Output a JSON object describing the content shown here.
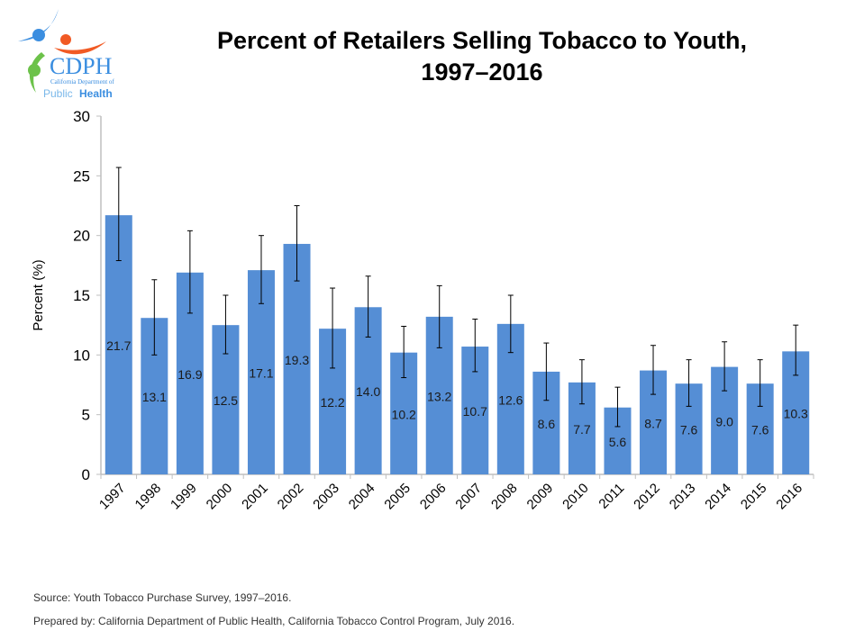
{
  "logo": {
    "text_main": "CDPH",
    "text_sub": "California Department of",
    "text_bottom_1": "Public",
    "text_bottom_2": "Health"
  },
  "title_line1": "Percent of Retailers Selling Tobacco to Youth,",
  "title_line2": "1997–2016",
  "source": "Source: Youth Tobacco Purchase Survey, 1997–2016.",
  "prepared": "Prepared by: California Department of Public Health, California Tobacco Control Program, July 2016.",
  "colors": {
    "bar": "#558ED5",
    "error_bar": "#000000",
    "axis": "#BFBFBF"
  },
  "chart_data": {
    "type": "bar",
    "title": "Percent of Retailers Selling Tobacco to Youth, 1997–2016",
    "xlabel": "",
    "ylabel": "Percent (%)",
    "ylim": [
      0,
      30
    ],
    "yticks": [
      0,
      5,
      10,
      15,
      20,
      25,
      30
    ],
    "grid": false,
    "categories": [
      "1997",
      "1998",
      "1999",
      "2000",
      "2001",
      "2002",
      "2003",
      "2004",
      "2005",
      "2006",
      "2007",
      "2008",
      "2009",
      "2010",
      "2011",
      "2012",
      "2013",
      "2014",
      "2015",
      "2016"
    ],
    "values": [
      21.7,
      13.1,
      16.9,
      12.5,
      17.1,
      19.3,
      12.2,
      14.0,
      10.2,
      13.2,
      10.7,
      12.6,
      8.6,
      7.7,
      5.6,
      8.7,
      7.6,
      9.0,
      7.6,
      10.3
    ],
    "data_labels": [
      "21.7",
      "13.1",
      "16.9",
      "12.5",
      "17.1",
      "19.3",
      "12.2",
      "14.0",
      "10.2",
      "13.2",
      "10.7",
      "12.6",
      "8.6",
      "7.7",
      "5.6",
      "8.7",
      "7.6",
      "9.0",
      "7.6",
      "10.3"
    ],
    "error_low": [
      17.9,
      10.0,
      13.5,
      10.1,
      14.3,
      16.2,
      8.9,
      11.5,
      8.1,
      10.6,
      8.6,
      10.2,
      6.2,
      5.9,
      4.0,
      6.7,
      5.7,
      7.0,
      5.7,
      8.3
    ],
    "error_high": [
      25.7,
      16.3,
      20.4,
      15.0,
      20.0,
      22.5,
      15.6,
      16.6,
      12.4,
      15.8,
      13.0,
      15.0,
      11.0,
      9.6,
      7.3,
      10.8,
      9.6,
      11.1,
      9.6,
      12.5
    ]
  }
}
